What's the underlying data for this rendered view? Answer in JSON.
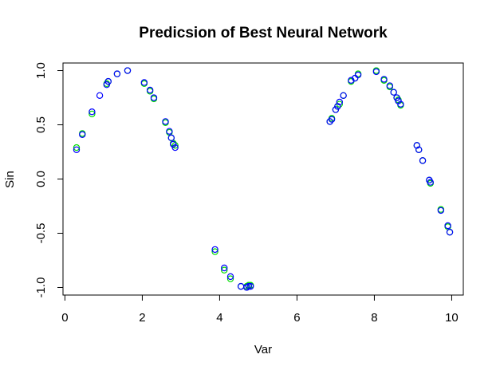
{
  "chart_data": {
    "type": "scatter",
    "title": "Predicsion of Best Neural Network",
    "xlabel": "Var",
    "ylabel": "Sin",
    "xlim": [
      -0.05,
      10.3
    ],
    "ylim": [
      -1.07,
      1.07
    ],
    "x_ticks": [
      0,
      2,
      4,
      6,
      8,
      10
    ],
    "y_ticks": [
      -1.0,
      -0.5,
      0.0,
      0.5,
      1.0
    ],
    "x_tick_labels": [
      "0",
      "2",
      "4",
      "6",
      "8",
      "10"
    ],
    "y_tick_labels": [
      "-1.0",
      "-0.5",
      "0.0",
      "0.5",
      "1.0"
    ],
    "grid": false,
    "series": [
      {
        "role": "actual",
        "color": "#00dd00",
        "points": [
          [
            0.3,
            0.29
          ],
          [
            0.45,
            0.42
          ],
          [
            0.7,
            0.6
          ],
          [
            1.08,
            0.88
          ],
          [
            1.12,
            0.9
          ],
          [
            1.35,
            0.97
          ],
          [
            1.62,
            1.0
          ],
          [
            2.05,
            0.88
          ],
          [
            2.2,
            0.81
          ],
          [
            2.3,
            0.74
          ],
          [
            2.6,
            0.52
          ],
          [
            2.7,
            0.43
          ],
          [
            2.75,
            0.38
          ],
          [
            2.8,
            0.33
          ],
          [
            2.85,
            0.31
          ],
          [
            3.88,
            -0.67
          ],
          [
            4.12,
            -0.84
          ],
          [
            4.28,
            -0.92
          ],
          [
            4.55,
            -0.99
          ],
          [
            4.7,
            -0.99
          ],
          [
            4.75,
            -0.98
          ],
          [
            4.8,
            -0.98
          ],
          [
            6.85,
            0.53
          ],
          [
            6.9,
            0.56
          ],
          [
            7.0,
            0.64
          ],
          [
            7.05,
            0.67
          ],
          [
            7.1,
            0.69
          ],
          [
            7.2,
            0.77
          ],
          [
            7.4,
            0.9
          ],
          [
            7.5,
            0.93
          ],
          [
            7.58,
            0.97
          ],
          [
            8.05,
            1.0
          ],
          [
            8.25,
            0.91
          ],
          [
            8.4,
            0.85
          ],
          [
            8.5,
            0.8
          ],
          [
            8.58,
            0.75
          ],
          [
            8.62,
            0.73
          ],
          [
            8.68,
            0.68
          ],
          [
            9.1,
            0.31
          ],
          [
            9.15,
            0.27
          ],
          [
            9.25,
            0.17
          ],
          [
            9.42,
            -0.01
          ],
          [
            9.45,
            -0.04
          ],
          [
            9.72,
            -0.28
          ],
          [
            9.9,
            -0.44
          ],
          [
            9.95,
            -0.49
          ]
        ]
      },
      {
        "role": "predicted",
        "color": "#0000ff",
        "points": [
          [
            0.3,
            0.27
          ],
          [
            0.45,
            0.41
          ],
          [
            0.7,
            0.62
          ],
          [
            0.9,
            0.77
          ],
          [
            1.08,
            0.87
          ],
          [
            1.12,
            0.9
          ],
          [
            1.35,
            0.97
          ],
          [
            1.62,
            1.0
          ],
          [
            2.05,
            0.89
          ],
          [
            2.2,
            0.82
          ],
          [
            2.3,
            0.75
          ],
          [
            2.6,
            0.53
          ],
          [
            2.7,
            0.44
          ],
          [
            2.75,
            0.38
          ],
          [
            2.8,
            0.32
          ],
          [
            2.85,
            0.29
          ],
          [
            3.88,
            -0.65
          ],
          [
            4.12,
            -0.82
          ],
          [
            4.28,
            -0.9
          ],
          [
            4.55,
            -0.99
          ],
          [
            4.7,
            -1.0
          ],
          [
            4.75,
            -0.99
          ],
          [
            4.8,
            -0.99
          ],
          [
            6.85,
            0.53
          ],
          [
            6.9,
            0.55
          ],
          [
            7.0,
            0.64
          ],
          [
            7.05,
            0.67
          ],
          [
            7.1,
            0.71
          ],
          [
            7.2,
            0.77
          ],
          [
            7.4,
            0.91
          ],
          [
            7.5,
            0.93
          ],
          [
            7.58,
            0.96
          ],
          [
            8.05,
            0.99
          ],
          [
            8.25,
            0.92
          ],
          [
            8.4,
            0.86
          ],
          [
            8.5,
            0.8
          ],
          [
            8.58,
            0.75
          ],
          [
            8.62,
            0.72
          ],
          [
            8.68,
            0.69
          ],
          [
            9.1,
            0.31
          ],
          [
            9.15,
            0.27
          ],
          [
            9.25,
            0.17
          ],
          [
            9.42,
            -0.01
          ],
          [
            9.45,
            -0.03
          ],
          [
            9.72,
            -0.29
          ],
          [
            9.9,
            -0.43
          ],
          [
            9.95,
            -0.49
          ]
        ]
      }
    ]
  }
}
